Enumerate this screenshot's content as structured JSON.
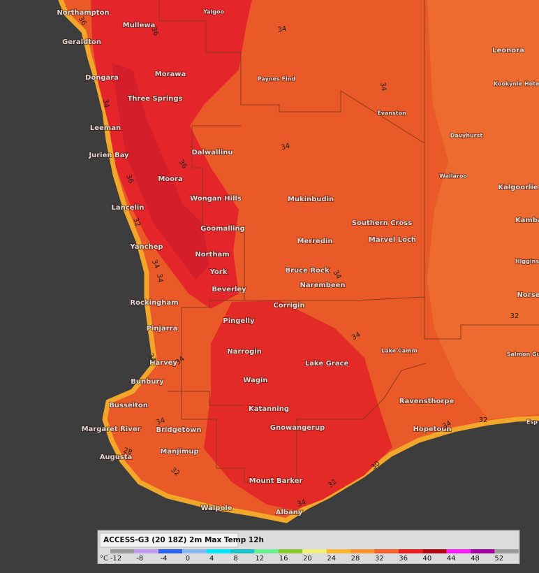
{
  "places": [
    "Northampton",
    "Yalgoo",
    "Mullewa",
    "Geraldton",
    "Leonora",
    "Morawa",
    "Dongara",
    "Paynes Find",
    "Kookynie Hotel",
    "Three Springs",
    "Evanston",
    "Leeman",
    "Davyhurst",
    "Dalwallinu",
    "Jurien Bay",
    "Wallaroo",
    "Moora",
    "Kalgoorlie",
    "Mukinbudin",
    "Wongan Hills",
    "Lancelin",
    "Kambal",
    "Southern Cross",
    "Goomalling",
    "Merredin",
    "Marvel Loch",
    "Yanchep",
    "Northam",
    "Higgins",
    "Bruce Rock",
    "York",
    "Narembeen",
    "Beverley",
    "Norse",
    "Rockingham",
    "Corrigin",
    "Pingelly",
    "Pinjarra",
    "Lake Camm",
    "Narrogin",
    "Salmon Gu",
    "Lake Grace",
    "Harvey",
    "Bunbury",
    "Wagin",
    "Busselton",
    "Ravensthorpe",
    "Katanning",
    "Esp",
    "Margaret River",
    "Bridgetown",
    "Gnowangerup",
    "Hopetoun",
    "Manjimup",
    "Augusta",
    "Mount Barker",
    "Walpole",
    "Albany"
  ],
  "contour_labels": [
    "36",
    "36",
    "34",
    "34",
    "34",
    "34",
    "36",
    "36",
    "32",
    "34",
    "34",
    "34",
    "34",
    "32",
    "34",
    "34",
    "34",
    "32",
    "34",
    "28",
    "32",
    "30",
    "32",
    "34"
  ],
  "legend": {
    "title": "ACCESS-G3 (20 18Z) 2m Max Temp 12h",
    "unit": "°C",
    "ticks": [
      -12,
      -8,
      -4,
      0,
      4,
      8,
      12,
      16,
      20,
      24,
      28,
      32,
      36,
      40,
      44,
      48,
      52
    ],
    "colors": [
      "#9a9a9a",
      "#c09cf0",
      "#2a62e8",
      "#8cb8f2",
      "#08e4f4",
      "#1ec2c8",
      "#6ef094",
      "#8cc832",
      "#f2f27a",
      "#f8b832",
      "#f89232",
      "#f0622e",
      "#e6201e",
      "#ae0612",
      "#f21ef2",
      "#a2009e",
      "#9a9a9a"
    ]
  }
}
